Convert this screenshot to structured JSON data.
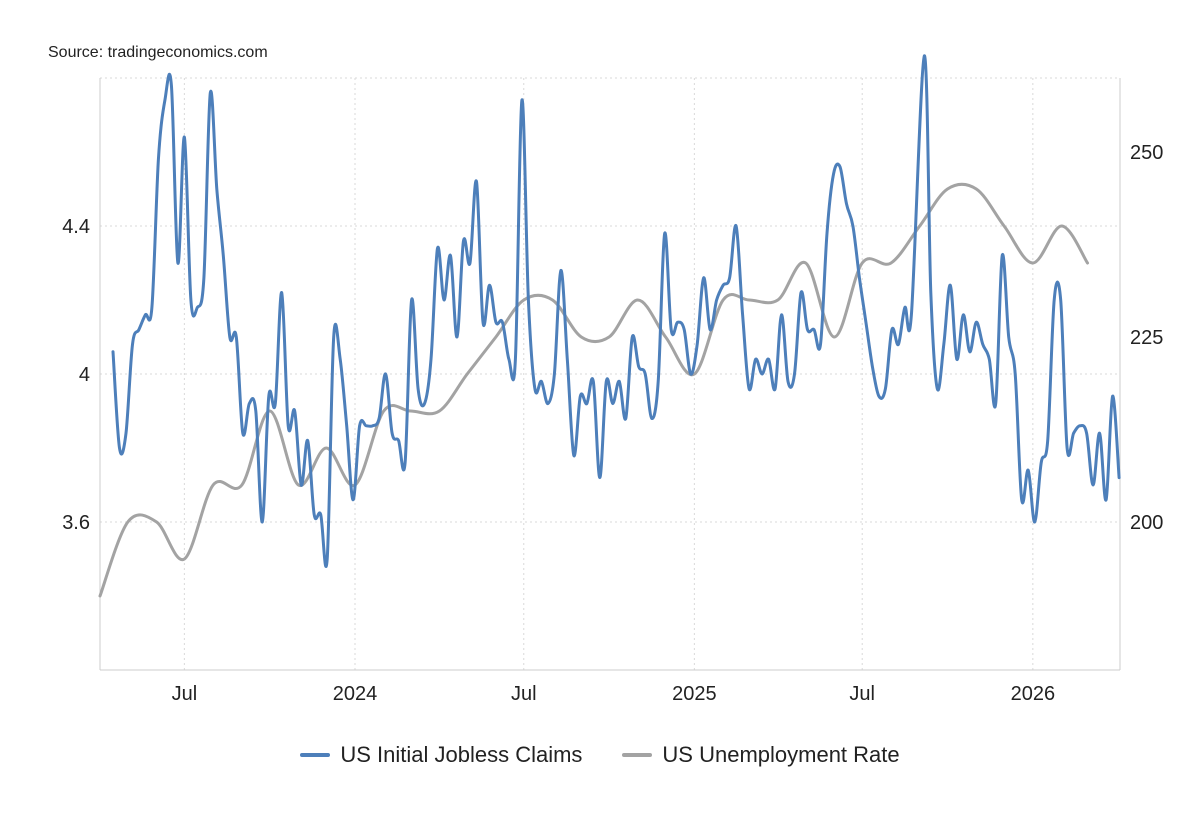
{
  "source": "Source: tradingeconomics.com",
  "colors": {
    "claims": "#4d7fba",
    "unemployment": "#a3a3a3",
    "grid": "#d9d9d9",
    "axis": "#cccccc"
  },
  "chart_data": {
    "type": "line",
    "x_ticks": [
      {
        "date": "2023-07-01",
        "label": "Jul"
      },
      {
        "date": "2024-01-01",
        "label": "2024"
      },
      {
        "date": "2024-07-01",
        "label": "Jul"
      },
      {
        "date": "2025-01-01",
        "label": "2025"
      },
      {
        "date": "2025-07-01",
        "label": "Jul"
      },
      {
        "date": "2026-01-01",
        "label": "2026"
      }
    ],
    "xlim": [
      "2023-04-01",
      "2026-04-05"
    ],
    "left_axis": {
      "ylim": [
        3.2,
        4.8
      ],
      "ticks": [
        "3.6",
        "4",
        "4.4"
      ],
      "tick_values": [
        3.6,
        4.0,
        4.4
      ]
    },
    "right_axis": {
      "ylim": [
        180,
        260
      ],
      "ticks": [
        "200",
        "225",
        "250"
      ],
      "tick_values": [
        200,
        225,
        250
      ]
    },
    "grid": true,
    "legend_position": "bottom-center",
    "series": [
      {
        "name": "US Initial Jobless Claims",
        "axis": "right",
        "points": [
          [
            "2023-04-15",
            223
          ],
          [
            "2023-04-22",
            210
          ],
          [
            "2023-04-29",
            212
          ],
          [
            "2023-05-06",
            224
          ],
          [
            "2023-05-13",
            226
          ],
          [
            "2023-05-20",
            228
          ],
          [
            "2023-05-27",
            229
          ],
          [
            "2023-06-03",
            249
          ],
          [
            "2023-06-10",
            257
          ],
          [
            "2023-06-17",
            259
          ],
          [
            "2023-06-24",
            235
          ],
          [
            "2023-07-01",
            252
          ],
          [
            "2023-07-08",
            230
          ],
          [
            "2023-07-15",
            229
          ],
          [
            "2023-07-22",
            233
          ],
          [
            "2023-07-29",
            258
          ],
          [
            "2023-08-05",
            245
          ],
          [
            "2023-08-12",
            236
          ],
          [
            "2023-08-19",
            225
          ],
          [
            "2023-08-26",
            225
          ],
          [
            "2023-09-02",
            212
          ],
          [
            "2023-09-09",
            216
          ],
          [
            "2023-09-16",
            215
          ],
          [
            "2023-09-23",
            200
          ],
          [
            "2023-09-30",
            217
          ],
          [
            "2023-10-07",
            216
          ],
          [
            "2023-10-14",
            231
          ],
          [
            "2023-10-21",
            213
          ],
          [
            "2023-10-28",
            215
          ],
          [
            "2023-11-04",
            205
          ],
          [
            "2023-11-11",
            211
          ],
          [
            "2023-11-18",
            201
          ],
          [
            "2023-11-25",
            201
          ],
          [
            "2023-12-02",
            195
          ],
          [
            "2023-12-09",
            225
          ],
          [
            "2023-12-16",
            222
          ],
          [
            "2023-12-23",
            213
          ],
          [
            "2023-12-30",
            203
          ],
          [
            "2024-01-06",
            213
          ],
          [
            "2024-01-13",
            213
          ],
          [
            "2024-01-20",
            213
          ],
          [
            "2024-01-27",
            214
          ],
          [
            "2024-02-03",
            220
          ],
          [
            "2024-02-10",
            212
          ],
          [
            "2024-02-17",
            211
          ],
          [
            "2024-02-24",
            208
          ],
          [
            "2024-03-02",
            230
          ],
          [
            "2024-03-09",
            218
          ],
          [
            "2024-03-16",
            216
          ],
          [
            "2024-03-23",
            222
          ],
          [
            "2024-03-30",
            237
          ],
          [
            "2024-04-06",
            230
          ],
          [
            "2024-04-13",
            236
          ],
          [
            "2024-04-20",
            225
          ],
          [
            "2024-04-27",
            238
          ],
          [
            "2024-05-04",
            235
          ],
          [
            "2024-05-11",
            246
          ],
          [
            "2024-05-18",
            227
          ],
          [
            "2024-05-25",
            232
          ],
          [
            "2024-06-01",
            227
          ],
          [
            "2024-06-08",
            227
          ],
          [
            "2024-06-15",
            222
          ],
          [
            "2024-06-22",
            222
          ],
          [
            "2024-06-29",
            257
          ],
          [
            "2024-07-06",
            230
          ],
          [
            "2024-07-13",
            218
          ],
          [
            "2024-07-20",
            219
          ],
          [
            "2024-07-27",
            216
          ],
          [
            "2024-08-03",
            220
          ],
          [
            "2024-08-10",
            234
          ],
          [
            "2024-08-17",
            222
          ],
          [
            "2024-08-24",
            209
          ],
          [
            "2024-08-31",
            217
          ],
          [
            "2024-09-07",
            216
          ],
          [
            "2024-09-14",
            219
          ],
          [
            "2024-09-21",
            206
          ],
          [
            "2024-09-28",
            219
          ],
          [
            "2024-10-05",
            216
          ],
          [
            "2024-10-12",
            219
          ],
          [
            "2024-10-19",
            214
          ],
          [
            "2024-10-26",
            225
          ],
          [
            "2024-11-02",
            221
          ],
          [
            "2024-11-09",
            220
          ],
          [
            "2024-11-16",
            214
          ],
          [
            "2024-11-23",
            219
          ],
          [
            "2024-11-30",
            239
          ],
          [
            "2024-12-07",
            226
          ],
          [
            "2024-12-14",
            227
          ],
          [
            "2024-12-21",
            226
          ],
          [
            "2024-12-28",
            220
          ],
          [
            "2025-01-04",
            224
          ],
          [
            "2025-01-11",
            233
          ],
          [
            "2025-01-18",
            226
          ],
          [
            "2025-01-25",
            230
          ],
          [
            "2025-02-01",
            232
          ],
          [
            "2025-02-08",
            233
          ],
          [
            "2025-02-15",
            240
          ],
          [
            "2025-02-22",
            228
          ],
          [
            "2025-03-01",
            218
          ],
          [
            "2025-03-08",
            222
          ],
          [
            "2025-03-15",
            220
          ],
          [
            "2025-03-22",
            222
          ],
          [
            "2025-03-29",
            218
          ],
          [
            "2025-04-05",
            228
          ],
          [
            "2025-04-12",
            219
          ],
          [
            "2025-04-19",
            220
          ],
          [
            "2025-04-26",
            231
          ],
          [
            "2025-05-03",
            226
          ],
          [
            "2025-05-10",
            226
          ],
          [
            "2025-05-17",
            224
          ],
          [
            "2025-05-24",
            239
          ],
          [
            "2025-05-31",
            247
          ],
          [
            "2025-06-07",
            248
          ],
          [
            "2025-06-14",
            243
          ],
          [
            "2025-06-21",
            240
          ],
          [
            "2025-06-28",
            233
          ],
          [
            "2025-07-05",
            227
          ],
          [
            "2025-07-12",
            221
          ],
          [
            "2025-07-19",
            217
          ],
          [
            "2025-07-26",
            218
          ],
          [
            "2025-08-02",
            226
          ],
          [
            "2025-08-09",
            224
          ],
          [
            "2025-08-16",
            229
          ],
          [
            "2025-08-23",
            228
          ],
          [
            "2025-09-06",
            263
          ],
          [
            "2025-09-13",
            231
          ],
          [
            "2025-09-20",
            218
          ],
          [
            "2025-09-27",
            224
          ],
          [
            "2025-10-04",
            232
          ],
          [
            "2025-10-11",
            222
          ],
          [
            "2025-10-18",
            228
          ],
          [
            "2025-10-25",
            223
          ],
          [
            "2025-11-01",
            227
          ],
          [
            "2025-11-08",
            224
          ],
          [
            "2025-11-15",
            222
          ],
          [
            "2025-11-22",
            216
          ],
          [
            "2025-11-29",
            236
          ],
          [
            "2025-12-06",
            225
          ],
          [
            "2025-12-13",
            220
          ],
          [
            "2025-12-20",
            203
          ],
          [
            "2025-12-27",
            207
          ],
          [
            "2026-01-03",
            200
          ],
          [
            "2026-01-10",
            208
          ],
          [
            "2026-01-17",
            211
          ],
          [
            "2026-01-24",
            230
          ],
          [
            "2026-01-31",
            230
          ],
          [
            "2026-02-07",
            210
          ],
          [
            "2026-02-14",
            212
          ],
          [
            "2026-02-21",
            213
          ],
          [
            "2026-02-28",
            212
          ],
          [
            "2026-03-07",
            205
          ],
          [
            "2026-03-14",
            212
          ],
          [
            "2026-03-21",
            203
          ],
          [
            "2026-03-28",
            217
          ],
          [
            "2026-04-04",
            206
          ]
        ]
      },
      {
        "name": "US Unemployment Rate",
        "axis": "left",
        "points": [
          [
            "2023-04-01",
            3.4
          ],
          [
            "2023-05-01",
            3.6
          ],
          [
            "2023-06-01",
            3.6
          ],
          [
            "2023-07-01",
            3.5
          ],
          [
            "2023-08-01",
            3.7
          ],
          [
            "2023-09-01",
            3.7
          ],
          [
            "2023-10-01",
            3.9
          ],
          [
            "2023-11-01",
            3.7
          ],
          [
            "2023-12-01",
            3.8
          ],
          [
            "2024-01-01",
            3.7
          ],
          [
            "2024-02-01",
            3.9
          ],
          [
            "2024-03-01",
            3.9
          ],
          [
            "2024-04-01",
            3.9
          ],
          [
            "2024-05-01",
            4.0
          ],
          [
            "2024-06-01",
            4.1
          ],
          [
            "2024-07-01",
            4.2
          ],
          [
            "2024-08-01",
            4.2
          ],
          [
            "2024-09-01",
            4.1
          ],
          [
            "2024-10-01",
            4.1
          ],
          [
            "2024-11-01",
            4.2
          ],
          [
            "2024-12-01",
            4.1
          ],
          [
            "2025-01-01",
            4.0
          ],
          [
            "2025-02-01",
            4.2
          ],
          [
            "2025-03-01",
            4.2
          ],
          [
            "2025-04-01",
            4.2
          ],
          [
            "2025-05-01",
            4.3
          ],
          [
            "2025-06-01",
            4.1
          ],
          [
            "2025-07-01",
            4.3
          ],
          [
            "2025-08-01",
            4.3
          ],
          [
            "2025-09-01",
            4.4
          ],
          [
            "2025-10-01",
            4.5
          ],
          [
            "2025-11-01",
            4.5
          ],
          [
            "2025-12-01",
            4.4
          ],
          [
            "2026-01-01",
            4.3
          ],
          [
            "2026-02-01",
            4.4
          ],
          [
            "2026-03-01",
            4.3
          ]
        ]
      }
    ]
  }
}
